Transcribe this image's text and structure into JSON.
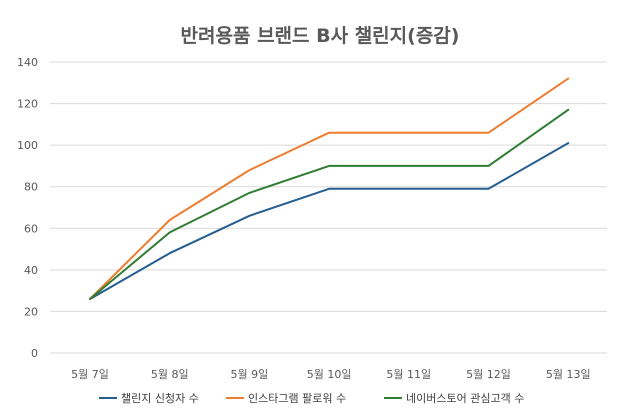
{
  "chart_data": {
    "type": "line",
    "title": "반려용품 브랜드 B사 챌린지(증감)",
    "categories": [
      "5월 7일",
      "5월 8일",
      "5월 9일",
      "5월 10일",
      "5월 11일",
      "5월 12일",
      "5월 13일"
    ],
    "ylim": [
      0,
      140
    ],
    "yticks": [
      0,
      20,
      40,
      60,
      80,
      100,
      120,
      140
    ],
    "grid": true,
    "legend_position": "bottom",
    "series": [
      {
        "name": "챌린지 신청자 수",
        "color": "#255e91",
        "values": [
          26,
          48,
          66,
          79,
          79,
          79,
          101
        ]
      },
      {
        "name": "인스타그램 팔로워 수",
        "color": "#ed7d31",
        "values": [
          26,
          64,
          88,
          106,
          106,
          106,
          132
        ]
      },
      {
        "name": "네이버스토어 관심고객 수",
        "color": "#2e7d32",
        "values": [
          26,
          58,
          77,
          90,
          90,
          90,
          117
        ]
      }
    ]
  }
}
